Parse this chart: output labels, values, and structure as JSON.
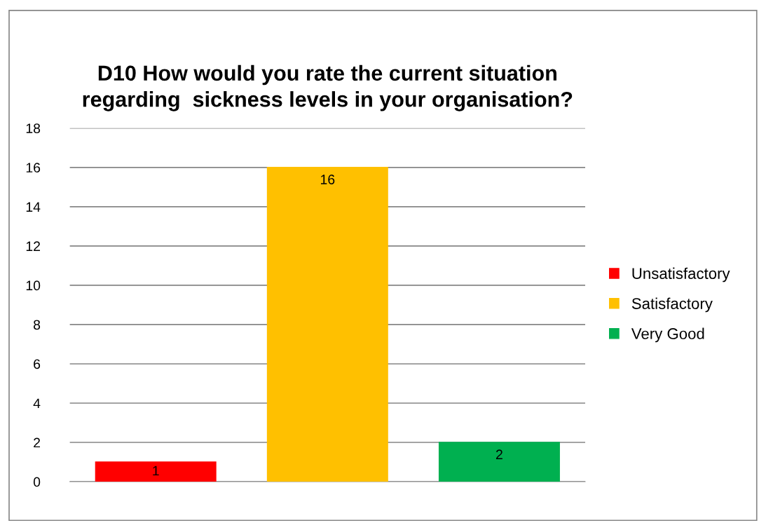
{
  "chart_data": {
    "type": "bar",
    "title": "D10 How would you rate the current situation\nregarding  sickness levels in your organisation?",
    "categories": [
      null,
      null,
      null
    ],
    "series": [
      {
        "name": "Unsatisfactory",
        "color": "#ff0000",
        "values": [
          1,
          null,
          null
        ]
      },
      {
        "name": "Satisfactory",
        "color": "#ffc000",
        "values": [
          null,
          16,
          null
        ]
      },
      {
        "name": "Very Good",
        "color": "#00b050",
        "values": [
          null,
          null,
          2
        ]
      }
    ],
    "ylim": [
      0,
      18
    ],
    "yticks": [
      0,
      2,
      4,
      6,
      8,
      10,
      12,
      14,
      16,
      18
    ],
    "grid": "y",
    "legend": "right",
    "data_labels": true
  }
}
